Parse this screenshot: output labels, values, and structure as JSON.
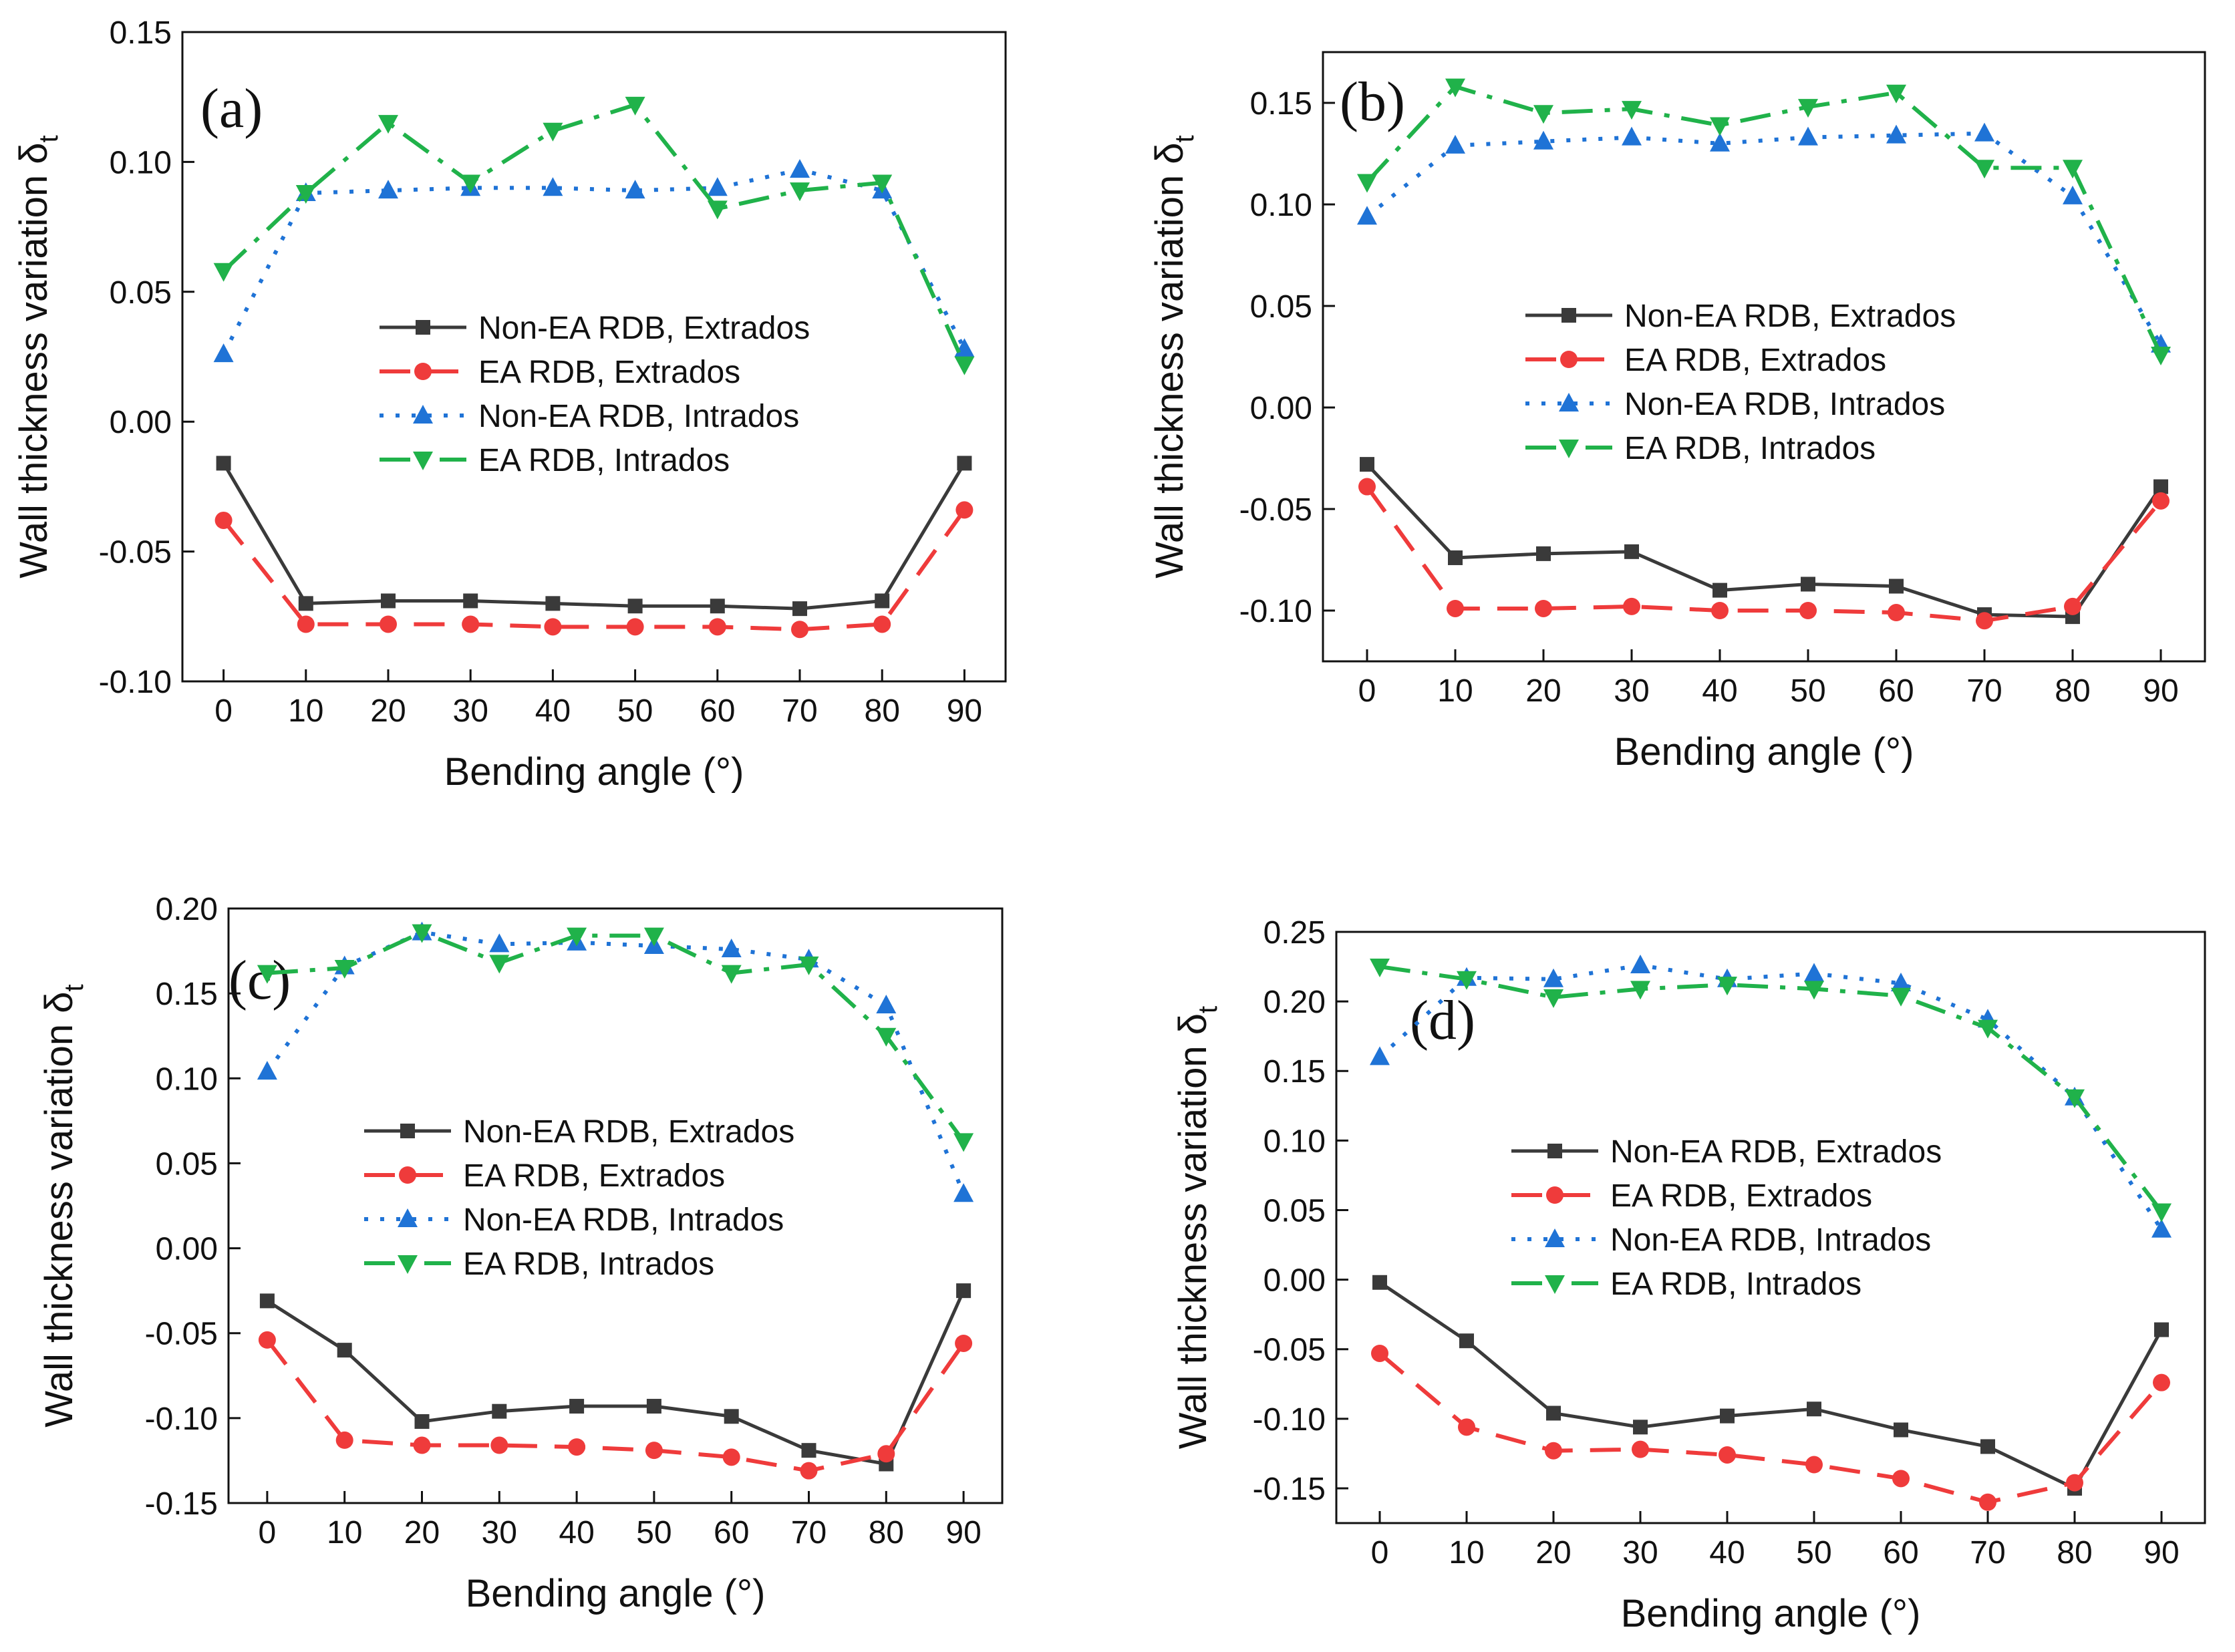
{
  "figure": {
    "background": "#ffffff",
    "axis_color": "#111111"
  },
  "series_styles": [
    {
      "name": "Non-EA RDB, Extrados",
      "color": "#3a3a3a",
      "marker": "square",
      "dash": "solid"
    },
    {
      "name": "EA RDB, Extrados",
      "color": "#ef3b3b",
      "marker": "circle",
      "dash": "dashed"
    },
    {
      "name": "Non-EA RDB, Intrados",
      "color": "#1f73d6",
      "marker": "triangle-up",
      "dash": "dotted"
    },
    {
      "name": "EA RDB, Intrados",
      "color": "#20b24a",
      "marker": "triangle-down",
      "dash": "dashdot"
    }
  ],
  "chart_data": [
    {
      "type": "line",
      "panel_label": "(a)",
      "xlabel": "Bending angle (°)",
      "ylabel": "Wall thickness variation δ",
      "ylabel_subscript": "t",
      "x": [
        0,
        10,
        20,
        30,
        40,
        50,
        60,
        70,
        80,
        90
      ],
      "xlim": [
        -5,
        95
      ],
      "ylim": [
        -0.1,
        0.15
      ],
      "yticks": [
        -0.1,
        -0.05,
        0.0,
        0.05,
        0.1,
        0.15
      ],
      "ytick_labels": [
        "-0.10",
        "-0.05",
        "0.00",
        "0.05",
        "0.10",
        "0.15"
      ],
      "xtick_labels": [
        "0",
        "10",
        "20",
        "30",
        "40",
        "50",
        "60",
        "70",
        "80",
        "90"
      ],
      "legend": "center",
      "series": [
        {
          "name": "Non-EA RDB, Extrados",
          "values": [
            -0.016,
            -0.07,
            -0.069,
            -0.069,
            -0.07,
            -0.071,
            -0.071,
            -0.072,
            -0.069,
            -0.016
          ]
        },
        {
          "name": "EA RDB, Extrados",
          "values": [
            -0.038,
            -0.078,
            -0.078,
            -0.078,
            -0.079,
            -0.079,
            -0.079,
            -0.08,
            -0.078,
            -0.034
          ]
        },
        {
          "name": "Non-EA RDB, Intrados",
          "values": [
            0.026,
            0.088,
            0.089,
            0.09,
            0.09,
            0.089,
            0.09,
            0.097,
            0.089,
            0.028
          ]
        },
        {
          "name": "EA RDB, Intrados",
          "values": [
            0.058,
            0.088,
            0.115,
            0.092,
            0.112,
            0.122,
            0.082,
            0.089,
            0.092,
            0.022
          ]
        }
      ]
    },
    {
      "type": "line",
      "panel_label": "(b)",
      "xlabel": "Bending angle (°)",
      "ylabel": "Wall thickness variation δ",
      "ylabel_subscript": "t",
      "x": [
        0,
        10,
        20,
        30,
        40,
        50,
        60,
        70,
        80,
        90
      ],
      "xlim": [
        -5,
        95
      ],
      "ylim": [
        -0.125,
        0.175
      ],
      "yticks": [
        -0.1,
        -0.05,
        0.0,
        0.05,
        0.1,
        0.15
      ],
      "ytick_labels": [
        "-0.10",
        "-0.05",
        "0.00",
        "0.05",
        "0.10",
        "0.15"
      ],
      "xtick_labels": [
        "0",
        "10",
        "20",
        "30",
        "40",
        "50",
        "60",
        "70",
        "80",
        "90"
      ],
      "legend": "center",
      "series": [
        {
          "name": "Non-EA RDB, Extrados",
          "values": [
            -0.028,
            -0.074,
            -0.072,
            -0.071,
            -0.09,
            -0.087,
            -0.088,
            -0.102,
            -0.103,
            -0.039
          ]
        },
        {
          "name": "EA RDB, Extrados",
          "values": [
            -0.039,
            -0.099,
            -0.099,
            -0.098,
            -0.1,
            -0.1,
            -0.101,
            -0.105,
            -0.098,
            -0.046
          ]
        },
        {
          "name": "Non-EA RDB, Intrados",
          "values": [
            0.094,
            0.129,
            0.131,
            0.133,
            0.13,
            0.133,
            0.134,
            0.135,
            0.104,
            0.031
          ]
        },
        {
          "name": "EA RDB, Intrados",
          "values": [
            0.111,
            0.158,
            0.145,
            0.147,
            0.139,
            0.148,
            0.155,
            0.118,
            0.118,
            0.026
          ]
        }
      ]
    },
    {
      "type": "line",
      "panel_label": "(c)",
      "xlabel": "Bending angle (°)",
      "ylabel": "Wall thickness variation δ",
      "ylabel_subscript": "t",
      "x": [
        0,
        10,
        20,
        30,
        40,
        50,
        60,
        70,
        80,
        90
      ],
      "xlim": [
        -5,
        95
      ],
      "ylim": [
        -0.15,
        0.2
      ],
      "yticks": [
        -0.15,
        -0.1,
        -0.05,
        0.0,
        0.05,
        0.1,
        0.15,
        0.2
      ],
      "ytick_labels": [
        "-0.15",
        "-0.10",
        "-0.05",
        "0.00",
        "0.05",
        "0.10",
        "0.15",
        "0.20"
      ],
      "xtick_labels": [
        "0",
        "10",
        "20",
        "30",
        "40",
        "50",
        "60",
        "70",
        "80",
        "90"
      ],
      "legend": "center",
      "series": [
        {
          "name": "Non-EA RDB, Extrados",
          "values": [
            -0.031,
            -0.06,
            -0.102,
            -0.096,
            -0.093,
            -0.093,
            -0.099,
            -0.119,
            -0.127,
            -0.025
          ]
        },
        {
          "name": "EA RDB, Extrados",
          "values": [
            -0.054,
            -0.113,
            -0.116,
            -0.116,
            -0.117,
            -0.119,
            -0.123,
            -0.131,
            -0.121,
            -0.056
          ]
        },
        {
          "name": "Non-EA RDB, Intrados",
          "values": [
            0.104,
            0.166,
            0.186,
            0.179,
            0.18,
            0.178,
            0.176,
            0.17,
            0.143,
            0.032
          ]
        },
        {
          "name": "EA RDB, Intrados",
          "values": [
            0.162,
            0.165,
            0.186,
            0.168,
            0.184,
            0.184,
            0.162,
            0.167,
            0.125,
            0.063
          ]
        }
      ]
    },
    {
      "type": "line",
      "panel_label": "(d)",
      "xlabel": "Bending angle (°)",
      "ylabel": "Wall thickness variation δ",
      "ylabel_subscript": "t",
      "x": [
        0,
        10,
        20,
        30,
        40,
        50,
        60,
        70,
        80,
        90
      ],
      "xlim": [
        -5,
        95
      ],
      "ylim": [
        -0.175,
        0.25
      ],
      "yticks": [
        -0.15,
        -0.1,
        -0.05,
        0.0,
        0.05,
        0.1,
        0.15,
        0.2,
        0.25
      ],
      "ytick_labels": [
        "-0.15",
        "-0.10",
        "-0.05",
        "0.00",
        "0.05",
        "0.10",
        "0.15",
        "0.20",
        "0.25"
      ],
      "xtick_labels": [
        "0",
        "10",
        "20",
        "30",
        "40",
        "50",
        "60",
        "70",
        "80",
        "90"
      ],
      "legend": "center",
      "series": [
        {
          "name": "Non-EA RDB, Extrados",
          "values": [
            -0.002,
            -0.044,
            -0.096,
            -0.106,
            -0.098,
            -0.093,
            -0.108,
            -0.12,
            -0.15,
            -0.036
          ]
        },
        {
          "name": "EA RDB, Extrados",
          "values": [
            -0.053,
            -0.106,
            -0.123,
            -0.122,
            -0.126,
            -0.133,
            -0.143,
            -0.16,
            -0.146,
            -0.074
          ]
        },
        {
          "name": "Non-EA RDB, Intrados",
          "values": [
            0.16,
            0.217,
            0.216,
            0.226,
            0.216,
            0.22,
            0.213,
            0.187,
            0.131,
            0.036
          ]
        },
        {
          "name": "EA RDB, Intrados",
          "values": [
            0.225,
            0.216,
            0.203,
            0.209,
            0.212,
            0.209,
            0.204,
            0.181,
            0.131,
            0.049
          ]
        }
      ]
    }
  ]
}
